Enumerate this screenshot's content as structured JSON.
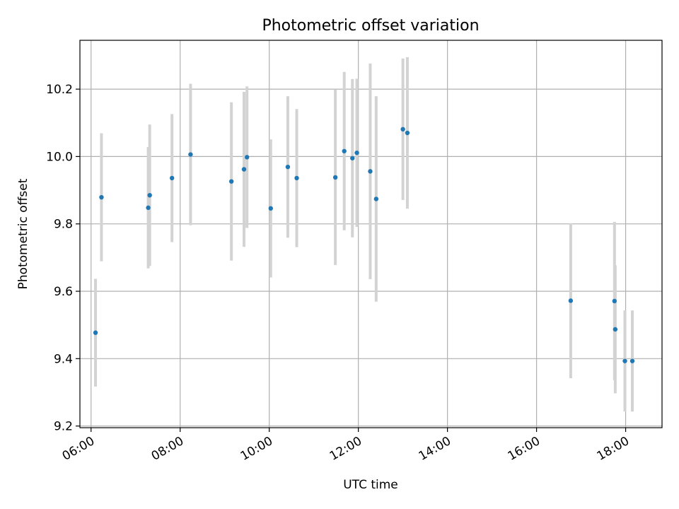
{
  "chart_data": {
    "type": "scatter",
    "title": "Photometric offset variation",
    "xlabel": "UTC time",
    "ylabel": "Photometric offset",
    "xlim": [
      "05:45",
      "18:49"
    ],
    "ylim": [
      9.195,
      10.345
    ],
    "x_ticks": [
      "06:00",
      "08:00",
      "10:00",
      "12:00",
      "14:00",
      "16:00",
      "18:00"
    ],
    "y_ticks": [
      "9.2",
      "9.4",
      "9.6",
      "9.8",
      "10.0",
      "10.2"
    ],
    "grid": true,
    "point_color": "#1f77b4",
    "errorbar_color": "#d3d3d3",
    "series": [
      {
        "points": [
          {
            "x": "06:06",
            "y": 9.477,
            "err": 0.16
          },
          {
            "x": "06:14",
            "y": 9.879,
            "err": 0.19
          },
          {
            "x": "07:17",
            "y": 9.848,
            "err": 0.18
          },
          {
            "x": "07:19",
            "y": 9.885,
            "err": 0.21
          },
          {
            "x": "07:49",
            "y": 9.936,
            "err": 0.19
          },
          {
            "x": "08:14",
            "y": 10.006,
            "err": 0.21
          },
          {
            "x": "09:09",
            "y": 9.926,
            "err": 0.235
          },
          {
            "x": "09:26",
            "y": 9.962,
            "err": 0.23
          },
          {
            "x": "09:30",
            "y": 9.998,
            "err": 0.21
          },
          {
            "x": "10:02",
            "y": 9.846,
            "err": 0.205
          },
          {
            "x": "10:25",
            "y": 9.969,
            "err": 0.21
          },
          {
            "x": "10:37",
            "y": 9.936,
            "err": 0.205
          },
          {
            "x": "11:29",
            "y": 9.938,
            "err": 0.26
          },
          {
            "x": "11:41",
            "y": 10.016,
            "err": 0.235
          },
          {
            "x": "11:52",
            "y": 9.995,
            "err": 0.235
          },
          {
            "x": "11:58",
            "y": 10.011,
            "err": 0.22
          },
          {
            "x": "12:16",
            "y": 9.956,
            "err": 0.32
          },
          {
            "x": "12:24",
            "y": 9.874,
            "err": 0.305
          },
          {
            "x": "13:00",
            "y": 10.081,
            "err": 0.21
          },
          {
            "x": "13:06",
            "y": 10.07,
            "err": 0.225
          },
          {
            "x": "16:46",
            "y": 9.572,
            "err": 0.23
          },
          {
            "x": "17:45",
            "y": 9.571,
            "err": 0.235
          },
          {
            "x": "17:46",
            "y": 9.487,
            "err": 0.19
          },
          {
            "x": "17:59",
            "y": 9.393,
            "err": 0.15
          },
          {
            "x": "18:09",
            "y": 9.393,
            "err": 0.15
          }
        ]
      }
    ]
  }
}
